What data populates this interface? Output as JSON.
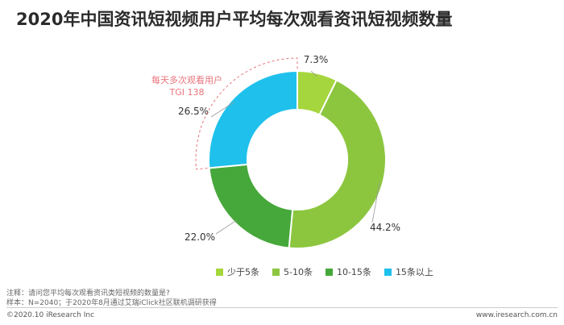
{
  "title": "2020年中国资讯短视频用户平均每次观看资讯短视频数量",
  "chart_data": {
    "type": "pie",
    "donut": true,
    "categories": [
      "少于5条",
      "5-10条",
      "10-15条",
      "15条以上"
    ],
    "values": [
      7.3,
      44.2,
      22.0,
      26.5
    ],
    "value_labels": [
      "7.3%",
      "44.2%",
      "22.0%",
      "26.5%"
    ],
    "colors": [
      "#a6d63d",
      "#8cc63f",
      "#46a83a",
      "#1fc1ec"
    ],
    "legend_position": "bottom",
    "annotation": {
      "line1": "每天多次观看用户",
      "line2": "TGI 138",
      "color": "#e8747c"
    }
  },
  "notes": {
    "line1": "注释：请问您平均每次观看资讯类短视频的数量是?",
    "line2": "样本：N=2040；于2020年8月通过艾瑞iClick社区联机调研获得"
  },
  "footer": {
    "left": "©2020.10 iResearch Inc",
    "right": "www.iresearch.com.cn"
  }
}
